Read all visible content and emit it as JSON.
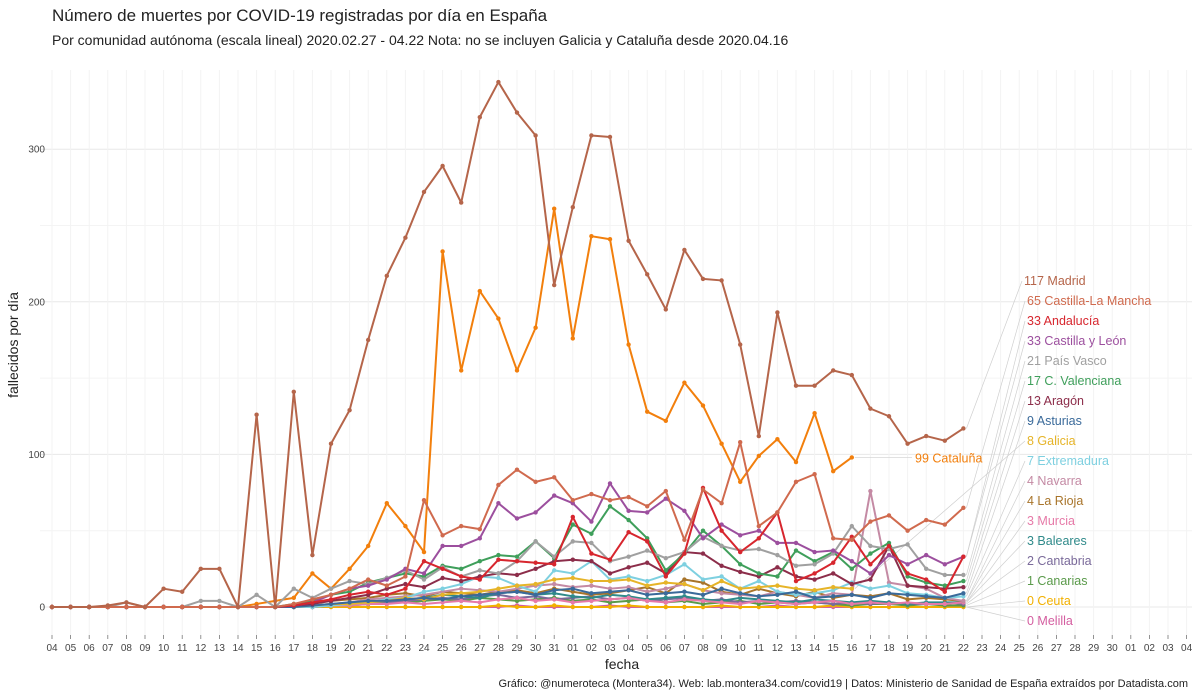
{
  "chart_data": {
    "type": "line",
    "title": "Número de muertes por COVID-19 registradas por día en España",
    "subtitle": "Por comunidad autónoma (escala lineal) 2020.02.27 - 04.22 Nota: no se incluyen Galicia y Cataluña desde 2020.04.16",
    "xlabel": "fecha",
    "ylabel": "fallecidos por día",
    "caption": "Gráfico: @numeroteca (Montera34). Web: lab.montera34.com/covid19 | Datos: Ministerio de Sanidad de España extraídos por Datadista.com",
    "x_tick_labels": [
      "04",
      "05",
      "06",
      "07",
      "08",
      "09",
      "10",
      "11",
      "12",
      "13",
      "14",
      "15",
      "16",
      "17",
      "18",
      "19",
      "20",
      "21",
      "22",
      "23",
      "24",
      "25",
      "26",
      "27",
      "28",
      "29",
      "30",
      "31",
      "01",
      "02",
      "03",
      "04",
      "05",
      "06",
      "07",
      "08",
      "09",
      "10",
      "11",
      "12",
      "13",
      "14",
      "15",
      "16",
      "17",
      "18",
      "19",
      "20",
      "21",
      "22",
      "23",
      "24",
      "25",
      "26",
      "27",
      "28",
      "29",
      "30",
      "01",
      "02",
      "03",
      "04"
    ],
    "y_ticks": [
      0,
      100,
      200,
      300
    ],
    "ylim": [
      -10,
      345
    ],
    "grid": true,
    "legend": "direct labels at right",
    "series": [
      {
        "label": "117 Madrid",
        "color": "#b5654a",
        "start": 0,
        "values": [
          0,
          0,
          0,
          1,
          3,
          0,
          12,
          10,
          25,
          25,
          0,
          126,
          0,
          141,
          34,
          107,
          129,
          175,
          217,
          242,
          272,
          289,
          265,
          321,
          344,
          324,
          309,
          211,
          262,
          309,
          308,
          240,
          218,
          195,
          234,
          215,
          214,
          172,
          112,
          193,
          145,
          145,
          155,
          152,
          130,
          125,
          107,
          112,
          109,
          117
        ]
      },
      {
        "label": "65 Castilla-La Mancha",
        "color": "#d06a4e",
        "start": 0,
        "values": [
          0,
          0,
          0,
          0,
          0,
          0,
          0,
          0,
          0,
          0,
          0,
          0,
          0,
          2,
          5,
          8,
          12,
          18,
          14,
          20,
          70,
          47,
          53,
          51,
          80,
          90,
          82,
          85,
          70,
          74,
          70,
          72,
          66,
          76,
          44,
          77,
          68,
          108,
          53,
          62,
          82,
          87,
          45,
          44,
          56,
          60,
          50,
          57,
          54,
          65
        ]
      },
      {
        "label": "33 Andalucía",
        "color": "#d7262e",
        "start": 0,
        "values": [
          0,
          0,
          0,
          0,
          0,
          0,
          0,
          0,
          0,
          0,
          0,
          0,
          0,
          1,
          3,
          5,
          8,
          10,
          8,
          12,
          30,
          25,
          20,
          18,
          31,
          30,
          29,
          28,
          59,
          35,
          31,
          49,
          43,
          20,
          35,
          78,
          50,
          36,
          45,
          62,
          17,
          22,
          29,
          46,
          28,
          40,
          22,
          18,
          10,
          33
        ]
      },
      {
        "label": "33 Castilla y León",
        "color": "#9c4f9e",
        "start": 0,
        "values": [
          0,
          0,
          0,
          0,
          0,
          0,
          0,
          0,
          0,
          0,
          0,
          0,
          0,
          1,
          3,
          8,
          12,
          14,
          18,
          25,
          22,
          40,
          40,
          45,
          68,
          58,
          62,
          73,
          68,
          56,
          81,
          63,
          62,
          71,
          63,
          45,
          54,
          47,
          50,
          42,
          42,
          36,
          37,
          30,
          22,
          34,
          28,
          34,
          28,
          33
        ]
      },
      {
        "label": "21 País Vasco",
        "color": "#a0a0a0",
        "start": 0,
        "values": [
          0,
          0,
          0,
          0,
          3,
          0,
          0,
          0,
          4,
          4,
          0,
          8,
          0,
          12,
          6,
          12,
          17,
          15,
          19,
          24,
          18,
          26,
          20,
          24,
          22,
          30,
          43,
          33,
          43,
          42,
          30,
          33,
          37,
          32,
          36,
          46,
          40,
          37,
          38,
          34,
          27,
          28,
          35,
          53,
          40,
          38,
          41,
          25,
          21,
          21
        ]
      },
      {
        "label": "17 C. Valenciana",
        "color": "#3f9f5b",
        "start": 0,
        "values": [
          0,
          0,
          0,
          0,
          0,
          0,
          0,
          0,
          0,
          0,
          0,
          0,
          0,
          2,
          4,
          8,
          10,
          16,
          19,
          22,
          20,
          27,
          25,
          30,
          34,
          33,
          43,
          32,
          54,
          48,
          66,
          57,
          45,
          24,
          35,
          50,
          40,
          28,
          22,
          20,
          37,
          30,
          36,
          25,
          35,
          42,
          20,
          16,
          14,
          17
        ]
      },
      {
        "label": "13 Aragón",
        "color": "#8c2d4a",
        "start": 0,
        "values": [
          0,
          0,
          0,
          0,
          0,
          0,
          0,
          0,
          0,
          0,
          0,
          0,
          0,
          1,
          2,
          4,
          6,
          8,
          12,
          15,
          13,
          19,
          17,
          20,
          22,
          21,
          25,
          30,
          31,
          30,
          22,
          26,
          29,
          22,
          36,
          35,
          27,
          23,
          20,
          26,
          20,
          18,
          22,
          15,
          18,
          40,
          14,
          13,
          12,
          13
        ]
      },
      {
        "label": "9 Asturias",
        "color": "#3a6a9a",
        "start": 0,
        "values": [
          0,
          0,
          0,
          0,
          0,
          0,
          0,
          0,
          0,
          0,
          0,
          0,
          0,
          0,
          1,
          2,
          3,
          4,
          4,
          5,
          6,
          5,
          7,
          8,
          9,
          10,
          8,
          11,
          12,
          9,
          10,
          11,
          8,
          9,
          10,
          8,
          12,
          9,
          7,
          8,
          10,
          6,
          7,
          8,
          6,
          9,
          8,
          7,
          6,
          9
        ]
      },
      {
        "label": "8 Galicia",
        "color": "#e6b428",
        "start": 0,
        "values": [
          0,
          0,
          0,
          0,
          0,
          0,
          0,
          0,
          0,
          0,
          0,
          0,
          0,
          0,
          1,
          2,
          2,
          3,
          4,
          6,
          5,
          8,
          9,
          10,
          12,
          14,
          15,
          18,
          19,
          17,
          17,
          18,
          14,
          16,
          15,
          11,
          17,
          12,
          13,
          14,
          12,
          11,
          13,
          12
        ]
      },
      {
        "label": "7 Extremadura",
        "color": "#7ed0e0",
        "start": 0,
        "values": [
          0,
          0,
          0,
          0,
          0,
          0,
          0,
          0,
          0,
          0,
          0,
          0,
          0,
          0,
          0,
          1,
          2,
          3,
          5,
          6,
          10,
          12,
          15,
          20,
          19,
          14,
          10,
          24,
          22,
          30,
          18,
          20,
          17,
          21,
          28,
          18,
          20,
          12,
          17,
          10,
          8,
          9,
          11,
          16,
          12,
          14,
          9,
          8,
          6,
          7
        ]
      },
      {
        "label": "4 Navarra",
        "color": "#c48aa4",
        "start": 0,
        "values": [
          0,
          0,
          0,
          0,
          0,
          0,
          0,
          0,
          0,
          0,
          0,
          0,
          0,
          0,
          1,
          2,
          3,
          5,
          6,
          7,
          8,
          10,
          12,
          11,
          10,
          12,
          14,
          15,
          13,
          14,
          12,
          13,
          10,
          12,
          15,
          11,
          9,
          8,
          7,
          10,
          8,
          6,
          9,
          8,
          76,
          16,
          14,
          12,
          6,
          4
        ]
      },
      {
        "label": "4 La Rioja",
        "color": "#a8742a",
        "start": 0,
        "values": [
          0,
          0,
          0,
          0,
          0,
          0,
          0,
          0,
          0,
          0,
          0,
          0,
          0,
          1,
          3,
          4,
          5,
          6,
          8,
          9,
          7,
          10,
          9,
          8,
          10,
          11,
          9,
          12,
          10,
          8,
          9,
          11,
          13,
          9,
          18,
          16,
          10,
          8,
          12,
          9,
          7,
          10,
          6,
          8,
          7,
          9,
          5,
          6,
          5,
          4
        ]
      },
      {
        "label": "3 Murcia",
        "color": "#e67aa8",
        "start": 0,
        "values": [
          0,
          0,
          0,
          0,
          0,
          0,
          0,
          0,
          0,
          0,
          0,
          0,
          0,
          0,
          0,
          1,
          1,
          2,
          2,
          3,
          2,
          3,
          4,
          3,
          5,
          6,
          4,
          5,
          3,
          4,
          5,
          6,
          4,
          3,
          5,
          4,
          3,
          2,
          4,
          3,
          2,
          3,
          4,
          2,
          3,
          2,
          3,
          2,
          2,
          3
        ]
      },
      {
        "label": "3 Baleares",
        "color": "#2f8a8a",
        "start": 0,
        "values": [
          0,
          0,
          0,
          0,
          0,
          0,
          0,
          0,
          0,
          0,
          0,
          0,
          0,
          0,
          0,
          1,
          2,
          3,
          4,
          5,
          6,
          8,
          7,
          6,
          9,
          10,
          8,
          9,
          7,
          6,
          8,
          7,
          5,
          6,
          7,
          5,
          4,
          6,
          5,
          4,
          3,
          5,
          4,
          3,
          4,
          3,
          2,
          3,
          3,
          3
        ]
      },
      {
        "label": "2 Cantabria",
        "color": "#7a6a9a",
        "start": 0,
        "values": [
          0,
          0,
          0,
          0,
          0,
          0,
          0,
          0,
          0,
          0,
          0,
          0,
          0,
          0,
          0,
          1,
          2,
          2,
          3,
          4,
          5,
          6,
          5,
          7,
          8,
          6,
          7,
          5,
          6,
          7,
          5,
          6,
          4,
          5,
          6,
          4,
          5,
          3,
          4,
          3,
          4,
          3,
          2,
          3,
          2,
          3,
          2,
          2,
          3,
          2
        ]
      },
      {
        "label": "1 Canarias",
        "color": "#5a9a4a",
        "start": 0,
        "values": [
          0,
          0,
          0,
          0,
          0,
          0,
          0,
          0,
          0,
          0,
          0,
          0,
          0,
          0,
          0,
          1,
          1,
          2,
          3,
          3,
          4,
          5,
          4,
          6,
          5,
          4,
          5,
          6,
          4,
          5,
          3,
          4,
          5,
          3,
          4,
          2,
          3,
          4,
          2,
          3,
          2,
          3,
          2,
          1,
          2,
          2,
          1,
          2,
          1,
          1
        ]
      },
      {
        "label": "0 Ceuta",
        "color": "#f2b000",
        "start": 0,
        "values": [
          0,
          0,
          0,
          0,
          0,
          0,
          0,
          0,
          0,
          0,
          0,
          0,
          0,
          0,
          0,
          0,
          0,
          0,
          0,
          0,
          0,
          0,
          0,
          0,
          1,
          0,
          0,
          1,
          0,
          0,
          0,
          1,
          0,
          0,
          0,
          0,
          1,
          0,
          0,
          0,
          0,
          0,
          1,
          0,
          0,
          0,
          0,
          0,
          0,
          0
        ]
      },
      {
        "label": "0 Melilla",
        "color": "#d45ea0",
        "start": 0,
        "values": [
          0,
          0,
          0,
          0,
          0,
          0,
          0,
          0,
          0,
          0,
          0,
          0,
          0,
          0,
          0,
          0,
          0,
          0,
          0,
          0,
          0,
          0,
          0,
          0,
          0,
          1,
          0,
          0,
          0,
          0,
          1,
          0,
          0,
          0,
          0,
          0,
          0,
          0,
          0,
          1,
          0,
          0,
          0,
          0,
          0,
          0,
          0,
          0,
          0,
          0
        ]
      },
      {
        "label": "99 Cataluña",
        "color": "#f27f0c",
        "start": 0,
        "values": [
          0,
          0,
          0,
          0,
          0,
          0,
          0,
          0,
          0,
          0,
          0,
          2,
          4,
          6,
          22,
          12,
          25,
          40,
          68,
          53,
          36,
          233,
          155,
          207,
          189,
          155,
          183,
          261,
          176,
          243,
          241,
          172,
          128,
          122,
          147,
          132,
          107,
          82,
          99,
          110,
          95,
          127,
          89,
          98
        ]
      }
    ]
  }
}
